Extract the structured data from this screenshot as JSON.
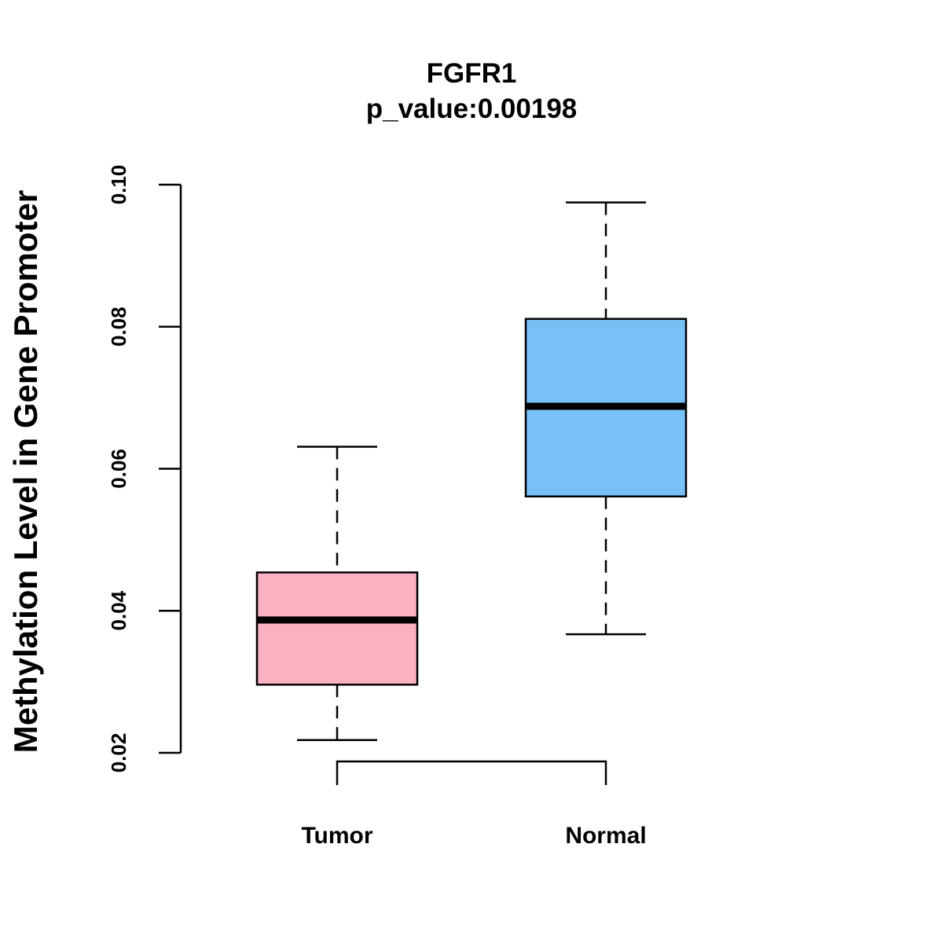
{
  "chart_data": {
    "type": "boxplot",
    "title": "FGFR1",
    "subtitle": "p_value:0.00198",
    "xlabel": "",
    "ylabel": "Methylation Level in Gene Promoter",
    "ylim": [
      0.02,
      0.1
    ],
    "yticks": [
      0.02,
      0.04,
      0.06,
      0.08,
      0.1
    ],
    "ytick_labels": [
      "0.02",
      "0.04",
      "0.06",
      "0.08",
      "0.10"
    ],
    "categories": [
      "Tumor",
      "Normal"
    ],
    "boxes": [
      {
        "name": "Tumor",
        "whisker_low": 0.0218,
        "q1": 0.0296,
        "median": 0.0387,
        "q3": 0.0454,
        "whisker_high": 0.0631,
        "color": "#fbb1c2"
      },
      {
        "name": "Normal",
        "whisker_low": 0.0367,
        "q1": 0.0561,
        "median": 0.0688,
        "q3": 0.0811,
        "whisker_high": 0.0975,
        "color": "#77c1f8"
      }
    ],
    "significance_bracket": {
      "from": "Tumor",
      "to": "Normal"
    }
  }
}
